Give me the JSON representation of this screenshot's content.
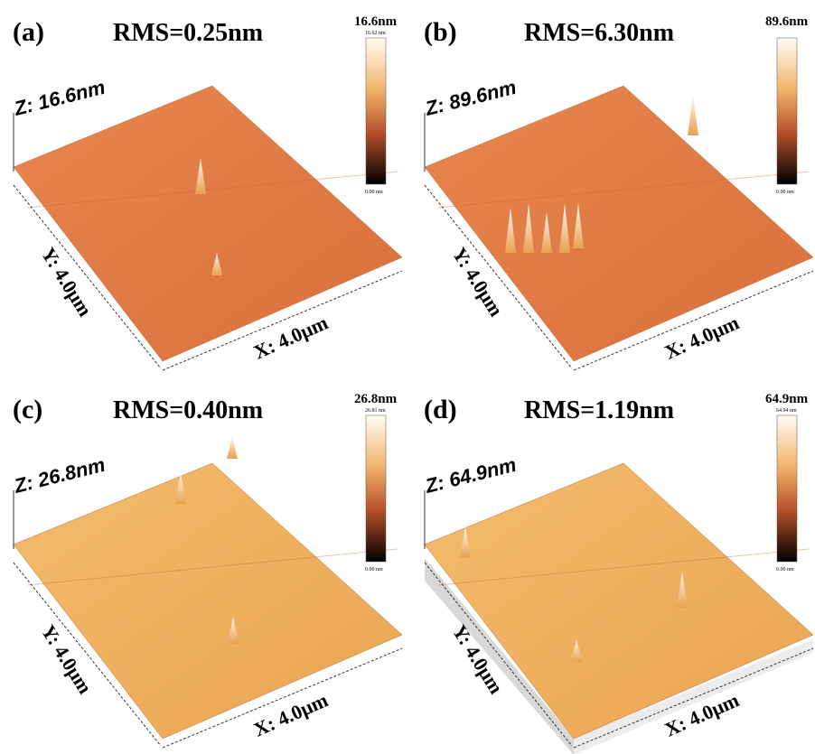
{
  "panels": [
    {
      "label": "(a)",
      "rms": "RMS=0.25nm",
      "z_axis": "Z: 16.6nm",
      "y_axis": "Y: 4.0μm",
      "x_axis": "X: 4.0μm",
      "scale_max": "16.6nm",
      "scale_top": "16.62 nm",
      "scale_bottom": "0.00 nm"
    },
    {
      "label": "(b)",
      "rms": "RMS=6.30nm",
      "z_axis": "Z: 89.6nm",
      "y_axis": "Y: 4.0μm",
      "x_axis": "X: 4.0μm",
      "scale_max": "89.6nm",
      "scale_bottom": "0.00 nm"
    },
    {
      "label": "(c)",
      "rms": "RMS=0.40nm",
      "z_axis": "Z: 26.8nm",
      "y_axis": "Y: 4.0μm",
      "x_axis": "X: 4.0μm",
      "scale_max": "26.8nm",
      "scale_top": "26.81 nm",
      "scale_bottom": "0.00 nm"
    },
    {
      "label": "(d)",
      "rms": "RMS=1.19nm",
      "z_axis": "Z: 64.9nm",
      "y_axis": "Y: 4.0μm",
      "x_axis": "X: 4.0μm",
      "scale_max": "64.9nm",
      "scale_top": "64.94 nm",
      "scale_bottom": "0.00 nm"
    }
  ]
}
